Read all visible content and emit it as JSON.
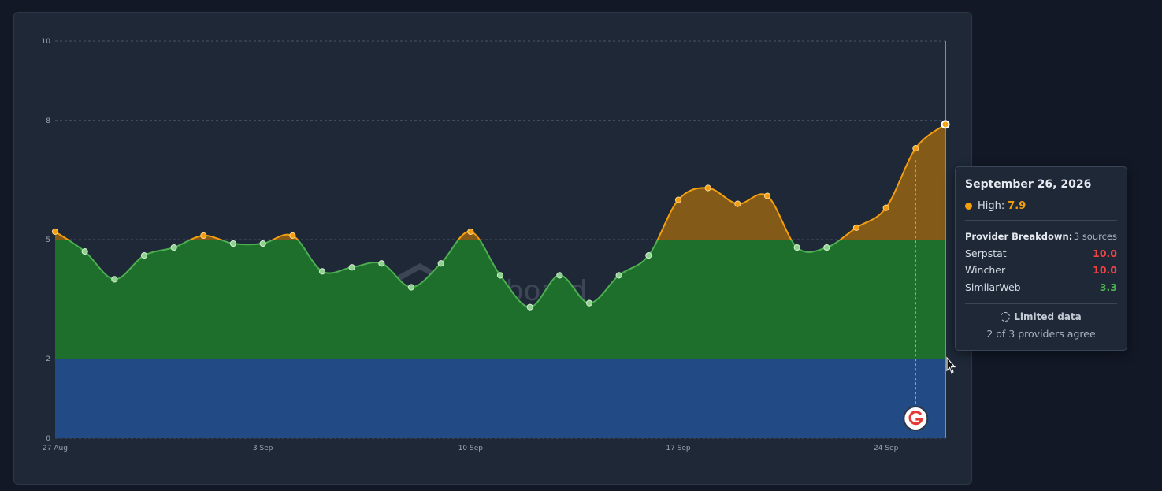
{
  "chart_data": {
    "type": "area",
    "x_tick_labels": [
      "27 Aug",
      "3 Sep",
      "10 Sep",
      "17 Sep",
      "24 Sep"
    ],
    "y_ticks": [
      0,
      2,
      5,
      8,
      10
    ],
    "ylim": [
      0,
      10
    ],
    "bands": [
      {
        "from": 0,
        "to": 2,
        "color": "#224a84"
      },
      {
        "from": 2,
        "to": 5,
        "color": "#1e6e2c"
      },
      {
        "from": 5,
        "to": 10,
        "color": "#835a18"
      }
    ],
    "series": [
      {
        "x": [
          "2026-08-27",
          "2026-08-28",
          "2026-08-29",
          "2026-08-30",
          "2026-08-31",
          "2026-09-01",
          "2026-09-02",
          "2026-09-03",
          "2026-09-04",
          "2026-09-05",
          "2026-09-06",
          "2026-09-07",
          "2026-09-08",
          "2026-09-09",
          "2026-09-10",
          "2026-09-11",
          "2026-09-12",
          "2026-09-13",
          "2026-09-14",
          "2026-09-15",
          "2026-09-16",
          "2026-09-17",
          "2026-09-18",
          "2026-09-19",
          "2026-09-20",
          "2026-09-21",
          "2026-09-22",
          "2026-09-23",
          "2026-09-24",
          "2026-09-25",
          "2026-09-26"
        ],
        "values": [
          5.2,
          4.7,
          4.0,
          4.6,
          4.8,
          5.1,
          4.9,
          4.9,
          5.1,
          4.2,
          4.3,
          4.4,
          3.8,
          4.4,
          5.2,
          4.1,
          3.3,
          4.1,
          3.4,
          4.1,
          4.6,
          6.0,
          6.3,
          5.9,
          6.1,
          4.8,
          4.8,
          5.3,
          5.8,
          7.3,
          7.9
        ]
      }
    ],
    "annotation_icon": "google-update-marker-icon",
    "watermark": "wireboard",
    "colors": {
      "line_low": "#4caf50",
      "line_high": "#f59e0b"
    }
  },
  "tooltip": {
    "date": "September 26, 2026",
    "high_label": "High:",
    "high_value": "7.9",
    "breakdown_title": "Provider Breakdown:",
    "breakdown_count": "3 sources",
    "providers": [
      {
        "name": "Serpstat",
        "value": "10.0"
      },
      {
        "name": "Wincher",
        "value": "10.0"
      },
      {
        "name": "SimilarWeb",
        "value": "3.3"
      }
    ],
    "limited_label": "Limited data",
    "agree_text": "2 of 3 providers agree"
  }
}
